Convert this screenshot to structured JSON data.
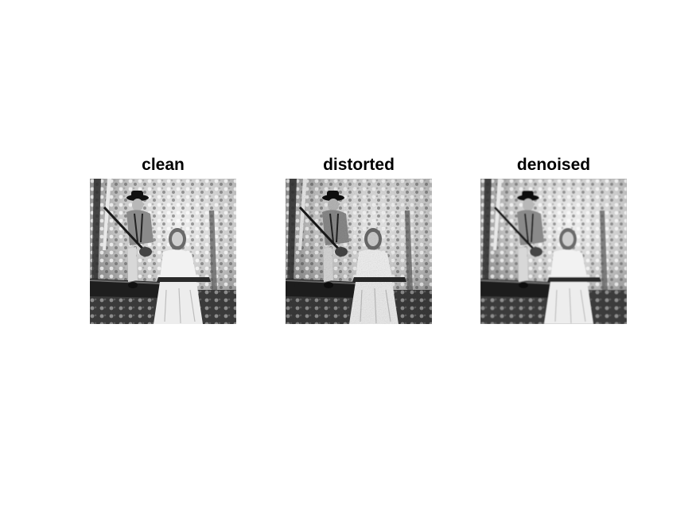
{
  "panels": [
    {
      "title": "clean",
      "variant": "clean"
    },
    {
      "title": "distorted",
      "variant": "distorted"
    },
    {
      "title": "denoised",
      "variant": "denoised"
    }
  ]
}
